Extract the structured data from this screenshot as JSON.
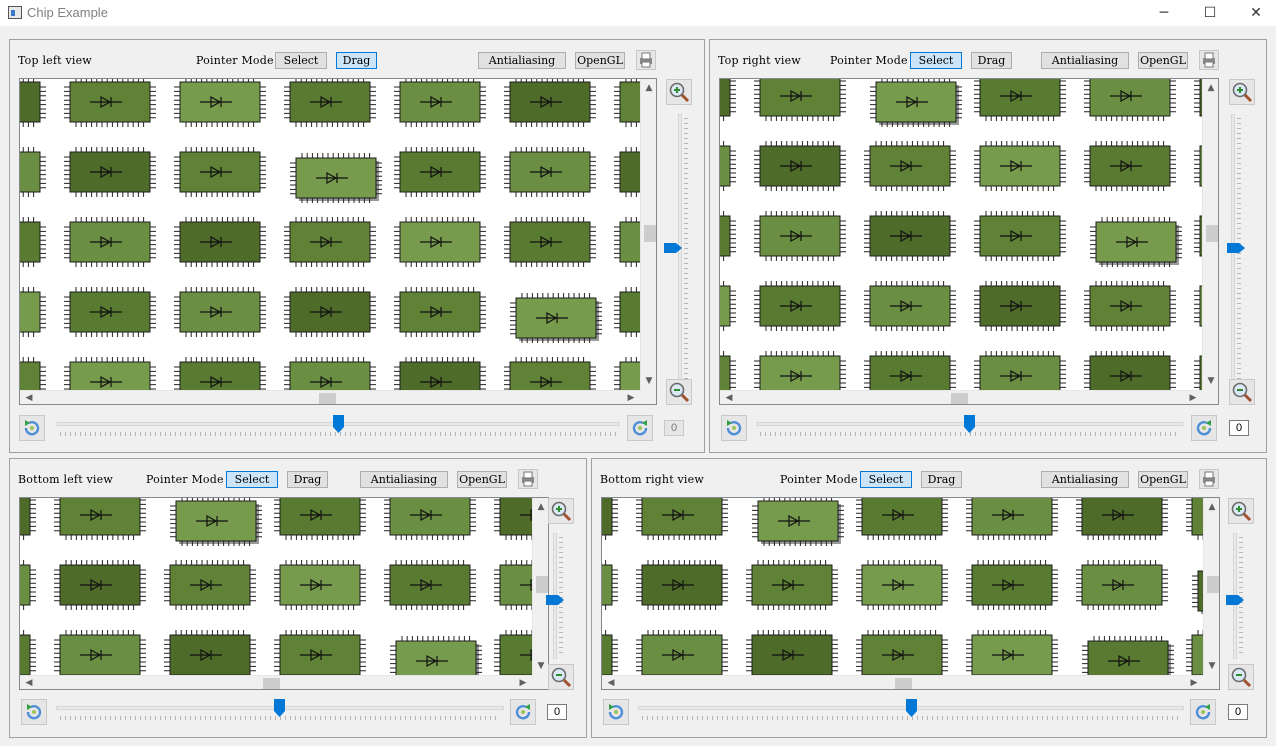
{
  "window": {
    "title": "Chip Example",
    "minimize_glyph": "─",
    "maximize_glyph": "☐",
    "close_glyph": "✕"
  },
  "colors": {
    "chip_palette": [
      "#4e6b2a",
      "#587a31",
      "#5f8237",
      "#6a8e42",
      "#779b4d"
    ],
    "accent": "#0078d7",
    "pressed_button": "#cce4f7"
  },
  "views": [
    {
      "title": "Top left view",
      "pointer_mode_label": "Pointer Mode",
      "select_label": "Select",
      "drag_label": "Drag",
      "mode": "drag",
      "antialiasing_label": "Antialiasing",
      "opengl_label": "OpenGL",
      "rotation_value": "0",
      "rotation_enabled": false,
      "print_icon": "printer-icon",
      "zoom_in_icon": "zoom-in-icon",
      "zoom_out_icon": "zoom-out-icon",
      "rotate_left_icon": "rotate-left-icon",
      "rotate_right_icon": "rotate-right-icon"
    },
    {
      "title": "Top right view",
      "pointer_mode_label": "Pointer Mode",
      "select_label": "Select",
      "drag_label": "Drag",
      "mode": "select",
      "antialiasing_label": "Antialiasing",
      "opengl_label": "OpenGL",
      "rotation_value": "0",
      "rotation_enabled": true,
      "print_icon": "printer-icon",
      "zoom_in_icon": "zoom-in-icon",
      "zoom_out_icon": "zoom-out-icon",
      "rotate_left_icon": "rotate-left-icon",
      "rotate_right_icon": "rotate-right-icon"
    },
    {
      "title": "Bottom left view",
      "pointer_mode_label": "Pointer Mode",
      "select_label": "Select",
      "drag_label": "Drag",
      "mode": "select",
      "antialiasing_label": "Antialiasing",
      "opengl_label": "OpenGL",
      "rotation_value": "0",
      "rotation_enabled": true,
      "print_icon": "printer-icon",
      "zoom_in_icon": "zoom-in-icon",
      "zoom_out_icon": "zoom-out-icon",
      "rotate_left_icon": "rotate-left-icon",
      "rotate_right_icon": "rotate-right-icon"
    },
    {
      "title": "Bottom right view",
      "pointer_mode_label": "Pointer Mode",
      "select_label": "Select",
      "drag_label": "Drag",
      "mode": "select",
      "antialiasing_label": "Antialiasing",
      "opengl_label": "OpenGL",
      "rotation_value": "0",
      "rotation_enabled": true,
      "print_icon": "printer-icon",
      "zoom_in_icon": "zoom-in-icon",
      "zoom_out_icon": "zoom-out-icon",
      "rotate_left_icon": "rotate-left-icon",
      "rotate_right_icon": "rotate-right-icon"
    }
  ]
}
